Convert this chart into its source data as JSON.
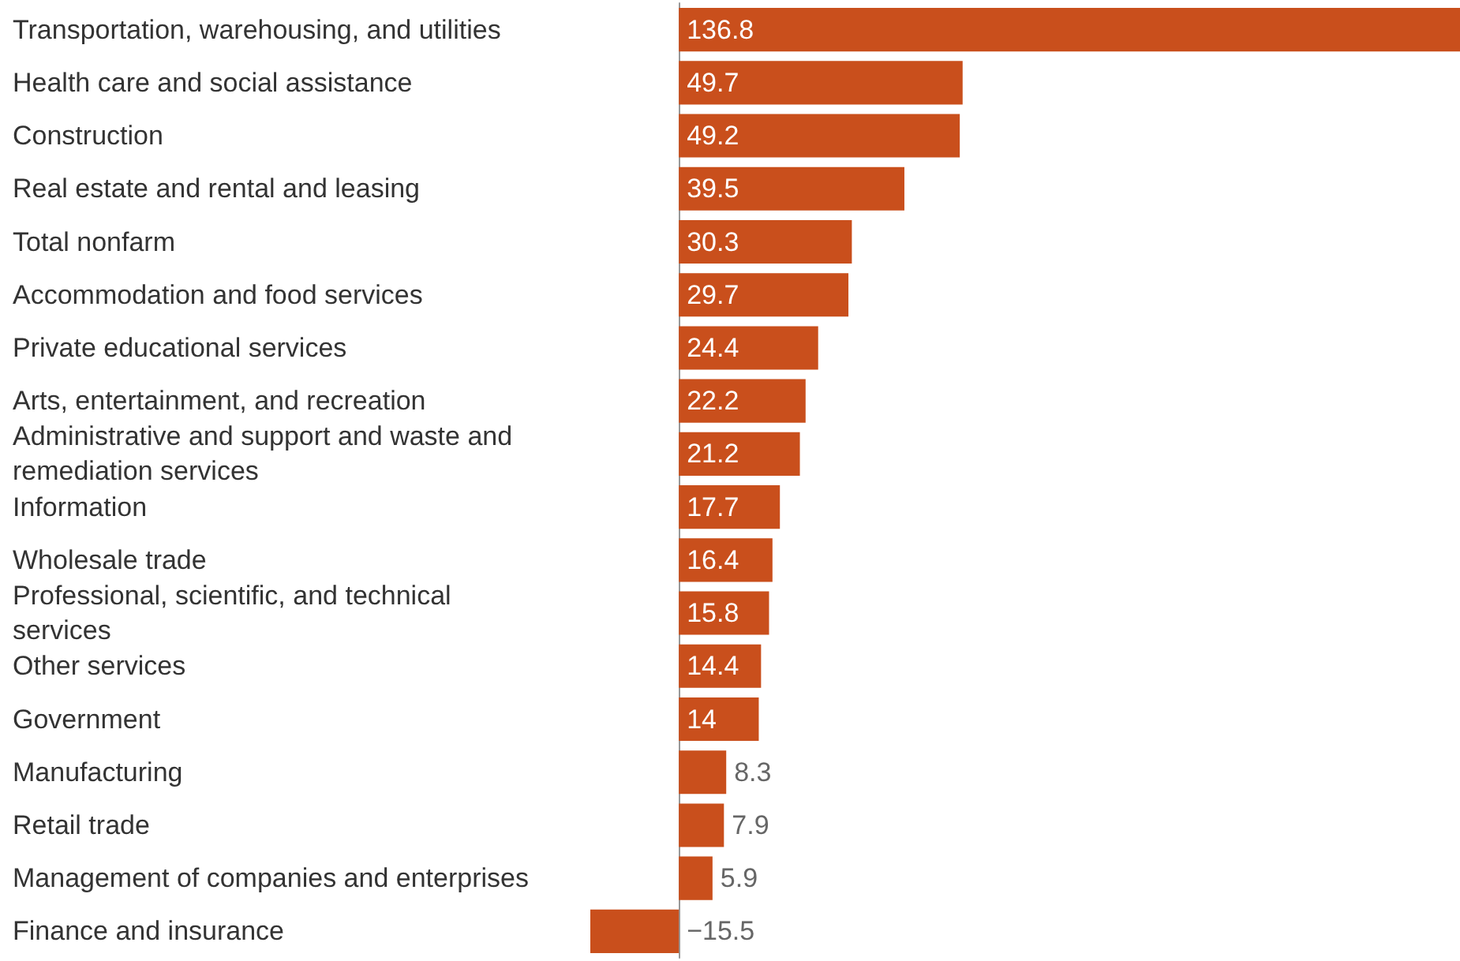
{
  "chart_data": {
    "type": "bar",
    "orientation": "horizontal",
    "categories": [
      "Transportation, warehousing, and utilities",
      "Health care and social assistance",
      "Construction",
      "Real estate and rental and leasing",
      "Total nonfarm",
      "Accommodation and food services",
      "Private educational services",
      "Arts, entertainment, and recreation",
      "Administrative and support and waste and remediation services",
      "Information",
      "Wholesale trade",
      "Professional, scientific, and technical services",
      "Other services",
      "Government",
      "Manufacturing",
      "Retail trade",
      "Management of companies and enterprises",
      "Finance and insurance"
    ],
    "values": [
      136.8,
      49.7,
      49.2,
      39.5,
      30.3,
      29.7,
      24.4,
      22.2,
      21.2,
      17.7,
      16.4,
      15.8,
      14.4,
      14,
      8.3,
      7.9,
      5.9,
      -15.5
    ],
    "value_labels": [
      "136.8",
      "49.7",
      "49.2",
      "39.5",
      "30.3",
      "29.7",
      "24.4",
      "22.2",
      "21.2",
      "17.7",
      "16.4",
      "15.8",
      "14.4",
      "14",
      "8.3",
      "7.9",
      "5.9",
      "−15.5"
    ],
    "color": "#c94f1c"
  }
}
